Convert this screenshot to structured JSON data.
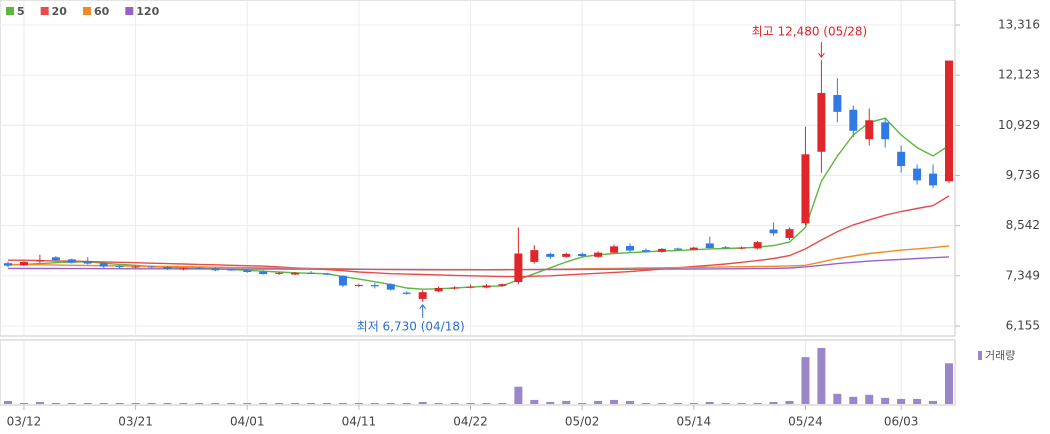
{
  "chart_data": {
    "type": "candlestick",
    "categories": [
      null,
      "03/12",
      null,
      null,
      null,
      null,
      null,
      null,
      "03/21",
      null,
      null,
      null,
      null,
      null,
      null,
      "04/01",
      null,
      null,
      null,
      null,
      null,
      null,
      "04/11",
      null,
      null,
      null,
      null,
      null,
      null,
      "04/22",
      null,
      null,
      null,
      null,
      null,
      null,
      "05/02",
      null,
      null,
      null,
      null,
      null,
      null,
      "05/14",
      null,
      null,
      null,
      null,
      null,
      null,
      "05/24",
      null,
      null,
      null,
      null,
      null,
      "06/03",
      null,
      null,
      null
    ],
    "ohlc": {
      "up_color": "#e0262b",
      "down_color": "#2f7ae5",
      "open": [
        7650,
        7600,
        7690,
        7790,
        7740,
        7700,
        7650,
        7580,
        7560,
        7570,
        7560,
        7510,
        7540,
        7520,
        7500,
        7480,
        7450,
        7400,
        7380,
        7420,
        7400,
        7350,
        7120,
        7130,
        7150,
        6950,
        6800,
        6980,
        7050,
        7080,
        7070,
        7110,
        7200,
        7680,
        7870,
        7800,
        7870,
        7800,
        7900,
        8060,
        7960,
        7920,
        8000,
        7970,
        8120,
        8030,
        8000,
        8000,
        8450,
        8250,
        8600,
        10300,
        11650,
        11300,
        10600,
        11000,
        10300,
        9900,
        9780,
        9600
      ],
      "high": [
        7680,
        7700,
        7850,
        7820,
        7760,
        7790,
        7670,
        7600,
        7590,
        7580,
        7580,
        7550,
        7560,
        7560,
        7520,
        7500,
        7480,
        7440,
        7440,
        7460,
        7420,
        7360,
        7160,
        7180,
        7170,
        6980,
        7010,
        7100,
        7100,
        7140,
        7150,
        7160,
        8500,
        8080,
        7900,
        7900,
        7900,
        7930,
        8090,
        8120,
        8000,
        8010,
        8020,
        8040,
        8280,
        8060,
        8050,
        8180,
        8620,
        8500,
        10900,
        12480,
        12050,
        11400,
        11330,
        11100,
        10450,
        10000,
        10000,
        12470
      ],
      "low": [
        7560,
        7580,
        7650,
        7700,
        7640,
        7620,
        7540,
        7530,
        7530,
        7540,
        7490,
        7480,
        7510,
        7460,
        7470,
        7420,
        7380,
        7370,
        7370,
        7400,
        7370,
        7080,
        7080,
        7050,
        7000,
        6900,
        6730,
        6960,
        7020,
        7050,
        7050,
        7090,
        7150,
        7640,
        7750,
        7780,
        7790,
        7780,
        7880,
        7900,
        7900,
        7900,
        7950,
        7950,
        8000,
        7990,
        7980,
        7980,
        8300,
        8200,
        8550,
        9800,
        11000,
        10650,
        10450,
        10400,
        9800,
        9520,
        9430,
        9550
      ],
      "close": [
        7590,
        7680,
        7720,
        7720,
        7660,
        7640,
        7570,
        7560,
        7570,
        7550,
        7500,
        7530,
        7520,
        7480,
        7490,
        7440,
        7390,
        7420,
        7420,
        7410,
        7380,
        7120,
        7130,
        7100,
        7020,
        6920,
        6960,
        7060,
        7070,
        7090,
        7120,
        7150,
        7880,
        7960,
        7800,
        7870,
        7820,
        7900,
        8050,
        7950,
        7920,
        7990,
        7970,
        8020,
        8010,
        8010,
        8020,
        8150,
        8360,
        8460,
        10240,
        11700,
        11250,
        10800,
        11050,
        10600,
        9960,
        9620,
        9500,
        12470
      ]
    },
    "moving_averages": [
      {
        "name": "5",
        "color": "#5cb83e",
        "values": [
          7610,
          7620,
          7640,
          7660,
          7680,
          7680,
          7650,
          7620,
          7600,
          7570,
          7550,
          7540,
          7530,
          7520,
          7500,
          7480,
          7460,
          7440,
          7420,
          7410,
          7400,
          7330,
          7270,
          7210,
          7140,
          7060,
          7030,
          7040,
          7060,
          7080,
          7100,
          7110,
          7260,
          7400,
          7540,
          7680,
          7800,
          7850,
          7880,
          7900,
          7920,
          7940,
          7950,
          7970,
          7990,
          8000,
          8010,
          8030,
          8070,
          8150,
          8500,
          9600,
          10200,
          10700,
          11000,
          11100,
          10700,
          10400,
          10200,
          10450
        ]
      },
      {
        "name": "20",
        "color": "#e84b4b",
        "values": [
          7720,
          7720,
          7710,
          7700,
          7700,
          7690,
          7680,
          7670,
          7660,
          7650,
          7640,
          7630,
          7620,
          7610,
          7600,
          7590,
          7580,
          7560,
          7540,
          7520,
          7500,
          7470,
          7440,
          7420,
          7400,
          7390,
          7380,
          7370,
          7360,
          7350,
          7340,
          7330,
          7330,
          7340,
          7350,
          7370,
          7390,
          7410,
          7430,
          7450,
          7480,
          7510,
          7540,
          7570,
          7600,
          7630,
          7670,
          7710,
          7760,
          7830,
          7990,
          8200,
          8400,
          8560,
          8680,
          8790,
          8880,
          8950,
          9020,
          9250
        ]
      },
      {
        "name": "60",
        "color": "#f08a24",
        "values": [
          7620,
          7615,
          7610,
          7605,
          7600,
          7595,
          7590,
          7585,
          7580,
          7575,
          7570,
          7565,
          7560,
          7555,
          7550,
          7545,
          7540,
          7535,
          7530,
          7525,
          7520,
          7515,
          7510,
          7505,
          7500,
          7495,
          7490,
          7490,
          7490,
          7490,
          7490,
          7490,
          7495,
          7500,
          7505,
          7510,
          7515,
          7520,
          7525,
          7530,
          7535,
          7540,
          7545,
          7550,
          7555,
          7560,
          7565,
          7570,
          7575,
          7585,
          7600,
          7680,
          7760,
          7820,
          7880,
          7920,
          7960,
          7990,
          8020,
          8060
        ]
      },
      {
        "name": "120",
        "color": "#9a62c9",
        "values": [
          7525,
          7524,
          7523,
          7522,
          7521,
          7520,
          7519,
          7518,
          7517,
          7516,
          7515,
          7514,
          7513,
          7512,
          7511,
          7510,
          7509,
          7508,
          7507,
          7506,
          7505,
          7504,
          7503,
          7502,
          7501,
          7500,
          7499,
          7498,
          7497,
          7496,
          7495,
          7496,
          7497,
          7498,
          7499,
          7500,
          7501,
          7502,
          7503,
          7504,
          7506,
          7508,
          7510,
          7512,
          7514,
          7516,
          7518,
          7520,
          7525,
          7535,
          7560,
          7600,
          7640,
          7670,
          7700,
          7720,
          7740,
          7760,
          7780,
          7800
        ]
      }
    ],
    "ylim": [
      5941,
      13911
    ],
    "yticks": [
      {
        "value": 6155,
        "label": "6,155"
      },
      {
        "value": 7349,
        "label": "7,349"
      },
      {
        "value": 8542,
        "label": "8,542"
      },
      {
        "value": 9736,
        "label": "9,736"
      },
      {
        "value": 10929,
        "label": "10,929"
      },
      {
        "value": 12123,
        "label": "12,123"
      },
      {
        "value": 13316,
        "label": "13,316"
      }
    ],
    "volume": {
      "name": "거래량",
      "color": "#9a86c8",
      "values": [
        3,
        1,
        2,
        1,
        1,
        1,
        1,
        1,
        1,
        1,
        1,
        1,
        1,
        1,
        1,
        1,
        1,
        1,
        1,
        1,
        1,
        1,
        1,
        1,
        1,
        1,
        2,
        1,
        1,
        1,
        1,
        1,
        17,
        4,
        2,
        3,
        1,
        3,
        4,
        3,
        1,
        1,
        1,
        1,
        2,
        1,
        1,
        1,
        2,
        3,
        46,
        55,
        10,
        7,
        9,
        6,
        5,
        5,
        3,
        40
      ]
    },
    "annotations": {
      "high": {
        "text": "최고 12,480 (05/28)",
        "color": "#e8202a"
      },
      "low": {
        "text": "최저 6,730 (04/18)",
        "color": "#2a6fd6"
      }
    },
    "grid": true
  }
}
